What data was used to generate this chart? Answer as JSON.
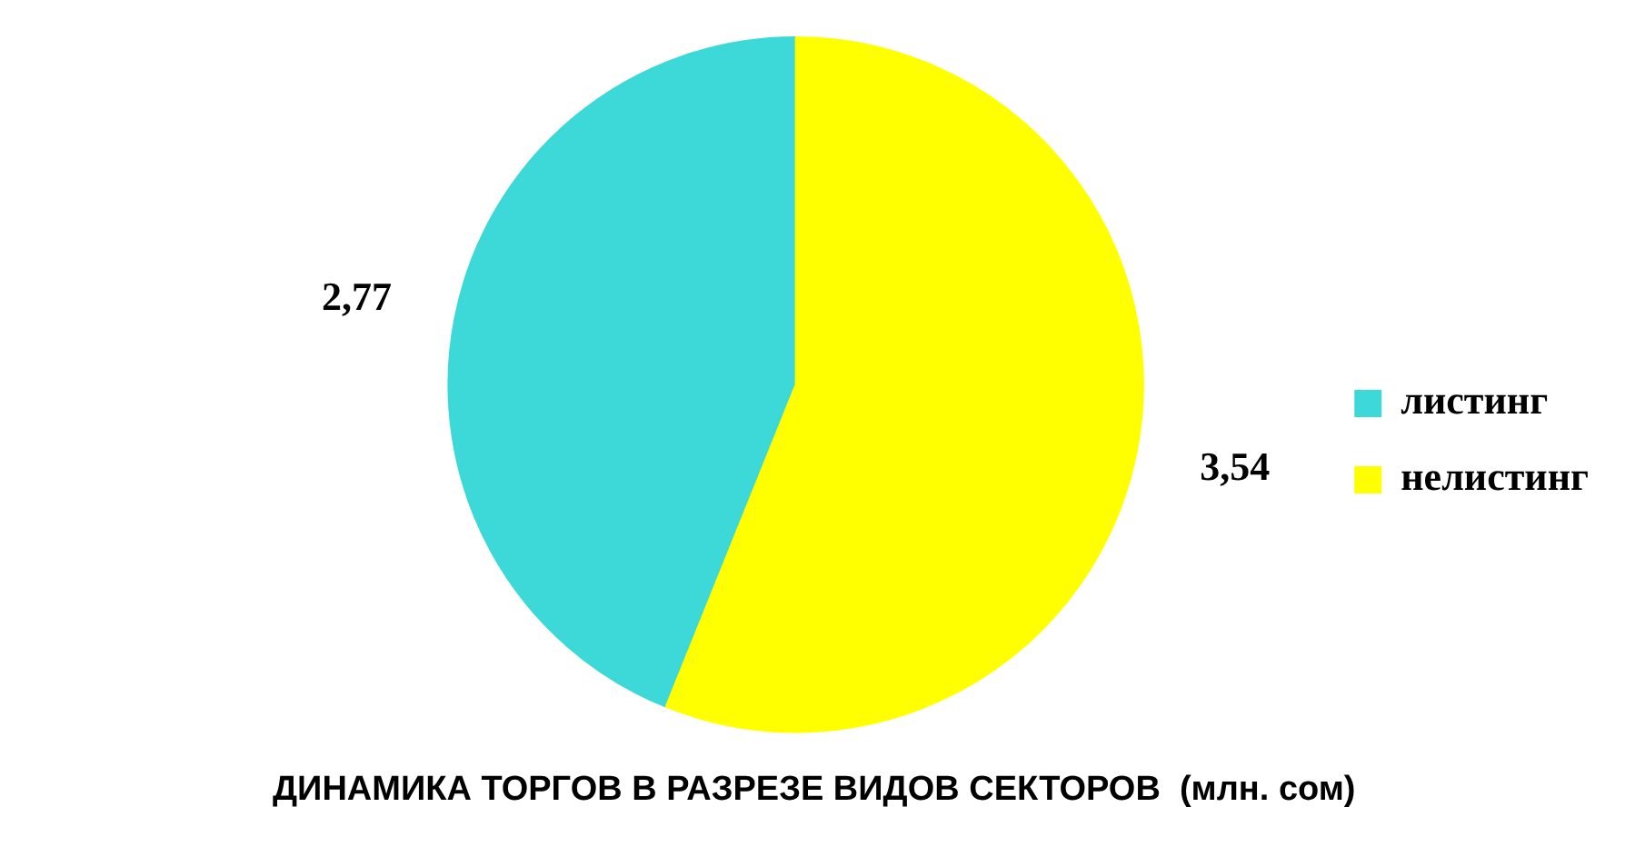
{
  "chart_data": {
    "type": "pie",
    "title": "ДИНАМИКА ТОРГОВ В РАЗРЕЗЕ ВИДОВ СЕКТОРОВ  (млн. сом)",
    "categories": [
      "листинг",
      "нелистинг"
    ],
    "values": [
      2.77,
      3.54
    ],
    "colors": [
      "#3dd8d8",
      "#ffff00"
    ],
    "value_labels": [
      "2,77",
      "3,54"
    ],
    "legend": "right"
  }
}
